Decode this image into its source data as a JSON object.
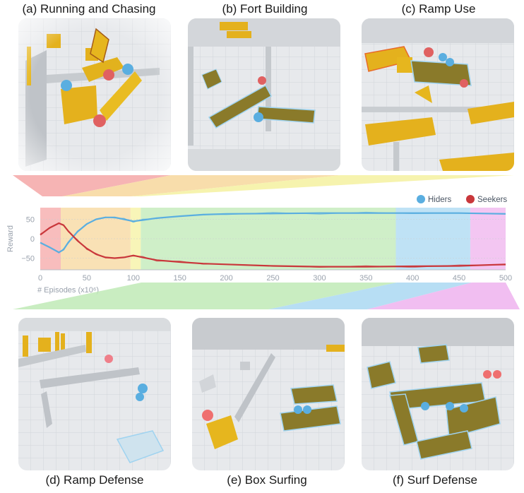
{
  "panels": [
    {
      "id": "a",
      "title": "(a) Running and Chasing"
    },
    {
      "id": "b",
      "title": "(b) Fort Building"
    },
    {
      "id": "c",
      "title": "(c) Ramp Use"
    },
    {
      "id": "d",
      "title": "(d) Ramp Defense"
    },
    {
      "id": "e",
      "title": "(e) Box Surfing"
    },
    {
      "id": "f",
      "title": "(f) Surf Defense"
    }
  ],
  "colors": {
    "hiders": "#5aaee0",
    "seekers": "#c9373b",
    "phase_a": "#f5a7a7",
    "phase_b": "#f7d79c",
    "phase_c": "#f5f1a0",
    "phase_d": "#bfeab6",
    "phase_e": "#aad8f2",
    "phase_f": "#efb3ee"
  },
  "chart_data": {
    "type": "line",
    "xlabel": "# Episodes (x10⁶)",
    "ylabel": "Reward",
    "xlim": [
      0,
      500
    ],
    "ylim": [
      -80,
      80
    ],
    "xticks": [
      0,
      50,
      100,
      150,
      200,
      250,
      300,
      350,
      400,
      450,
      500
    ],
    "yticks": [
      50,
      0,
      -50
    ],
    "legend": {
      "position": "top-right",
      "entries": [
        "Hiders",
        "Seekers"
      ]
    },
    "phases": [
      {
        "label": "a",
        "start": 0,
        "end": 22
      },
      {
        "label": "b",
        "start": 22,
        "end": 97
      },
      {
        "label": "c",
        "start": 97,
        "end": 108
      },
      {
        "label": "d",
        "start": 108,
        "end": 382
      },
      {
        "label": "e",
        "start": 382,
        "end": 462
      },
      {
        "label": "f",
        "start": 462,
        "end": 500
      }
    ],
    "series": [
      {
        "name": "Hiders",
        "x": [
          0,
          10,
          20,
          25,
          30,
          40,
          50,
          60,
          70,
          80,
          90,
          100,
          110,
          125,
          150,
          175,
          200,
          250,
          300,
          350,
          400,
          450,
          500
        ],
        "values": [
          -10,
          -22,
          -35,
          -28,
          -10,
          18,
          38,
          50,
          55,
          55,
          50,
          45,
          48,
          53,
          58,
          62,
          64,
          65,
          66,
          66,
          66,
          66,
          64
        ]
      },
      {
        "name": "Seekers",
        "x": [
          0,
          10,
          20,
          25,
          30,
          40,
          50,
          60,
          70,
          80,
          90,
          100,
          110,
          125,
          150,
          175,
          200,
          250,
          300,
          350,
          400,
          450,
          500
        ],
        "values": [
          10,
          28,
          40,
          35,
          20,
          -5,
          -25,
          -40,
          -48,
          -50,
          -48,
          -43,
          -48,
          -55,
          -60,
          -64,
          -66,
          -70,
          -72,
          -72,
          -71,
          -70,
          -66
        ]
      }
    ]
  }
}
